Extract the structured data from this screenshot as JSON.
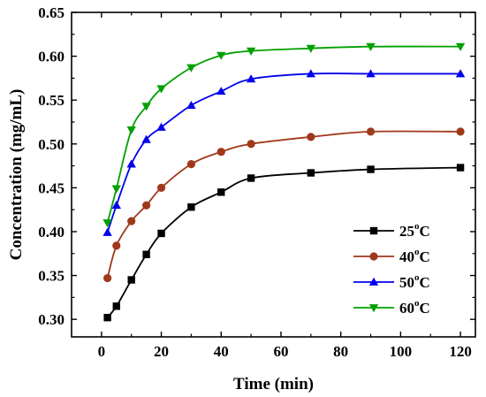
{
  "chart_data": {
    "type": "line",
    "title": "",
    "xlabel": "Time (min)",
    "ylabel": "Concentration (mg/mL)",
    "xlim": [
      -10,
      125
    ],
    "ylim": [
      0.28,
      0.65
    ],
    "xticks": [
      0,
      20,
      40,
      60,
      80,
      100,
      120
    ],
    "xtick_labels": [
      "0",
      "20",
      "40",
      "60",
      "80",
      "100",
      "120"
    ],
    "yticks": [
      0.3,
      0.35,
      0.4,
      0.45,
      0.5,
      0.55,
      0.6,
      0.65
    ],
    "ytick_labels": [
      "0.30",
      "0.35",
      "0.40",
      "0.45",
      "0.50",
      "0.55",
      "0.60",
      "0.65"
    ],
    "grid": false,
    "legend_position": "bottom-right",
    "x": [
      2,
      5,
      10,
      15,
      20,
      30,
      40,
      50,
      70,
      90,
      120
    ],
    "series": [
      {
        "name": "25",
        "name_sup": "o",
        "name_unit": "C",
        "color": "#000000",
        "marker": "square",
        "values": [
          0.302,
          0.315,
          0.345,
          0.374,
          0.398,
          0.428,
          0.445,
          0.461,
          0.467,
          0.471,
          0.473
        ]
      },
      {
        "name": "40",
        "name_sup": "o",
        "name_unit": "C",
        "color": "#a0381a",
        "marker": "circle",
        "values": [
          0.347,
          0.384,
          0.412,
          0.43,
          0.45,
          0.477,
          0.491,
          0.5,
          0.508,
          0.514,
          0.514
        ]
      },
      {
        "name": "50",
        "name_sup": "o",
        "name_unit": "C",
        "color": "#0000ee",
        "marker": "triangle-up",
        "values": [
          0.399,
          0.43,
          0.477,
          0.505,
          0.519,
          0.544,
          0.56,
          0.574,
          0.58,
          0.58,
          0.58
        ]
      },
      {
        "name": "60",
        "name_sup": "o",
        "name_unit": "C",
        "color": "#00a000",
        "marker": "triangle-down",
        "values": [
          0.41,
          0.449,
          0.516,
          0.543,
          0.563,
          0.587,
          0.601,
          0.606,
          0.609,
          0.611,
          0.611
        ]
      }
    ]
  }
}
